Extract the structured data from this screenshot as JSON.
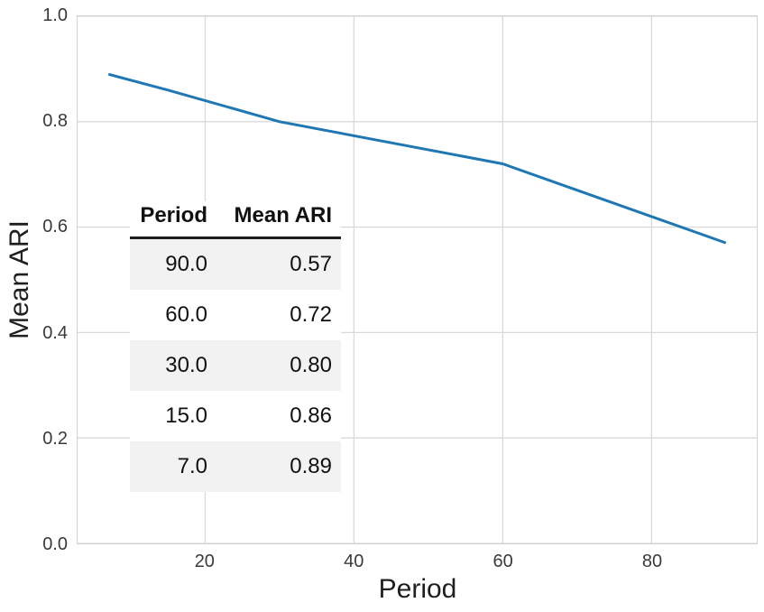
{
  "chart_data": {
    "type": "line",
    "title": "",
    "xlabel": "Period",
    "ylabel": "Mean ARI",
    "x": [
      7,
      15,
      30,
      60,
      90
    ],
    "y": [
      0.89,
      0.86,
      0.8,
      0.72,
      0.57
    ],
    "series": [
      {
        "name": "Mean ARI vs Period",
        "x": [
          7,
          15,
          30,
          60,
          90
        ],
        "values": [
          0.89,
          0.86,
          0.8,
          0.72,
          0.57
        ]
      }
    ],
    "xlim": [
      2.85,
      94.15
    ],
    "ylim": [
      0.0,
      1.0
    ],
    "xticks": [
      20,
      40,
      60,
      80
    ],
    "xtick_labels": [
      "20",
      "40",
      "60",
      "80"
    ],
    "yticks": [
      0.0,
      0.2,
      0.4,
      0.6,
      0.8,
      1.0
    ],
    "ytick_labels": [
      "0.0",
      "0.2",
      "0.4",
      "0.6",
      "0.8",
      "1.0"
    ],
    "grid": true,
    "legend": "none",
    "line_color": "#1f77b4",
    "grid_color": "#d9d9d9",
    "spine_color": "#d2d2d2"
  },
  "inset_table": {
    "headers": [
      "Period",
      "Mean ARI"
    ],
    "rows": [
      [
        "90.0",
        "0.57"
      ],
      [
        "60.0",
        "0.72"
      ],
      [
        "30.0",
        "0.80"
      ],
      [
        "15.0",
        "0.86"
      ],
      [
        "7.0",
        "0.89"
      ]
    ]
  }
}
